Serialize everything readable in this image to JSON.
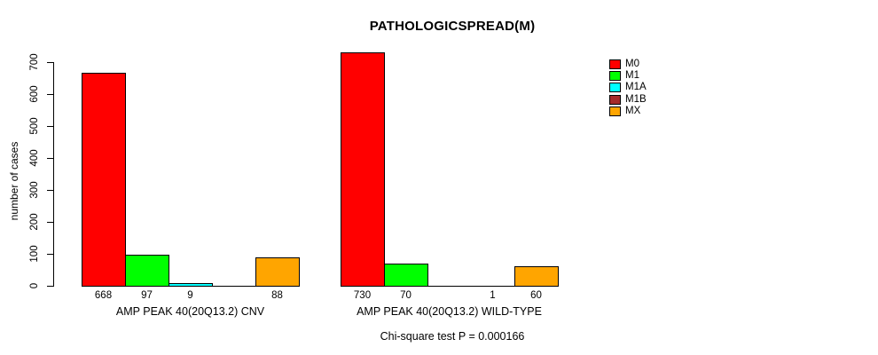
{
  "title": "PATHOLOGICSPREAD(M)",
  "ylabel": "number of cases",
  "footer": "Chi-square test P = 0.000166",
  "legend": {
    "items": [
      {
        "label": "M0",
        "color": "#ff0000"
      },
      {
        "label": "M1",
        "color": "#00ff00"
      },
      {
        "label": "M1A",
        "color": "#00ffff"
      },
      {
        "label": "M1B",
        "color": "#a52a2a"
      },
      {
        "label": "MX",
        "color": "#ffa500"
      }
    ]
  },
  "chart_data": {
    "type": "bar",
    "title": "PATHOLOGICSPREAD(M)",
    "ylabel": "number of cases",
    "xlabel": "",
    "ylim": [
      0,
      700
    ],
    "yticks": [
      0,
      100,
      200,
      300,
      400,
      500,
      600,
      700
    ],
    "grid": false,
    "legend_position": "right",
    "categories": [
      "M0",
      "M1",
      "M1A",
      "M1B",
      "MX"
    ],
    "colors": [
      "#ff0000",
      "#00ff00",
      "#00ffff",
      "#a52a2a",
      "#ffa500"
    ],
    "groups": [
      {
        "label": "AMP PEAK 40(20Q13.2) CNV",
        "values": [
          668,
          97,
          9,
          0,
          88
        ],
        "value_labels": [
          "668",
          "97",
          "9",
          "",
          "88"
        ]
      },
      {
        "label": "AMP PEAK 40(20Q13.2) WILD-TYPE",
        "values": [
          730,
          70,
          0,
          1,
          60
        ],
        "value_labels": [
          "730",
          "70",
          "",
          "1",
          "60"
        ]
      }
    ],
    "annotation": "Chi-square test P = 0.000166"
  }
}
